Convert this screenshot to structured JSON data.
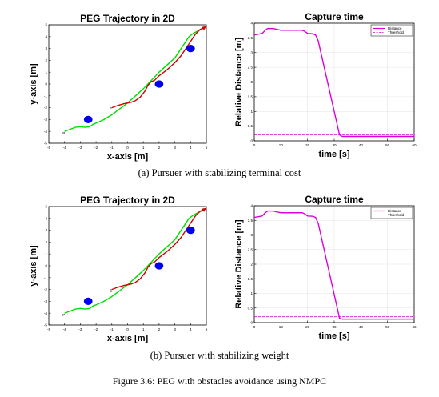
{
  "chart_data": [
    {
      "type": "line",
      "title": "PEG Trajectory in 2D",
      "xlabel": "x-axis [m]",
      "ylabel": "y-axis [m]",
      "xlim": [
        -5,
        5
      ],
      "ylim": [
        -5,
        5
      ],
      "xticks": [
        -5,
        -4,
        -3,
        -2,
        -1,
        0,
        1,
        2,
        3,
        4,
        5
      ],
      "yticks": [
        -5,
        -4,
        -3,
        -2,
        -1,
        0,
        1,
        2,
        3,
        4,
        5
      ],
      "grid": false,
      "series": [
        {
          "color": "#00dd00",
          "x": [
            -4.0,
            -3.6,
            -3.3,
            -3.0,
            -2.7,
            -2.4,
            -2.2,
            -2.0,
            -1.5,
            -1.0,
            -0.5,
            0.0,
            0.5,
            1.0,
            1.5,
            2.0,
            2.5,
            3.0,
            3.3,
            3.6,
            3.9,
            4.2,
            4.5,
            4.8
          ],
          "y": [
            -4.0,
            -3.8,
            -3.65,
            -3.6,
            -3.65,
            -3.6,
            -3.4,
            -3.3,
            -3.0,
            -2.6,
            -2.1,
            -1.6,
            -1.0,
            -0.4,
            0.3,
            1.0,
            1.6,
            2.2,
            2.8,
            3.4,
            4.0,
            4.3,
            4.5,
            4.7
          ]
        },
        {
          "color": "#cc0000",
          "x": [
            -1.0,
            -0.6,
            -0.2,
            0.2,
            0.5,
            0.8,
            1.1,
            1.3,
            1.5,
            1.7,
            2.0,
            2.5,
            3.0,
            3.4,
            3.7,
            4.0,
            4.3,
            4.6,
            4.85
          ],
          "y": [
            -2.0,
            -1.8,
            -1.65,
            -1.55,
            -1.4,
            -1.1,
            -0.6,
            -0.1,
            0.2,
            0.3,
            0.7,
            1.2,
            1.8,
            2.4,
            3.0,
            3.6,
            4.2,
            4.6,
            4.75
          ]
        }
      ],
      "obstacles": [
        {
          "x": -2.5,
          "y": -3.0,
          "color": "#0000ee"
        },
        {
          "x": 2.0,
          "y": 0.0,
          "color": "#0000ee"
        },
        {
          "x": 4.0,
          "y": 3.0,
          "color": "#0000ee"
        }
      ],
      "annotations": [
        {
          "text": "P",
          "x": -4.05,
          "y": -4.25
        },
        {
          "text": "E",
          "x": -1.05,
          "y": -2.2
        }
      ]
    },
    {
      "type": "line",
      "title": "Capture time",
      "xlabel": "time [s]",
      "ylabel": "Relative Distance [m]",
      "xlim": [
        0,
        60
      ],
      "ylim": [
        0,
        4
      ],
      "xticks": [
        0,
        10,
        20,
        30,
        40,
        50,
        60
      ],
      "yticks": [
        0,
        0.5,
        1,
        1.5,
        2,
        2.5,
        3,
        3.5,
        4
      ],
      "grid": true,
      "legend_position": "top-right",
      "series": [
        {
          "name": "Distance",
          "color": "#dd00dd",
          "dash": "solid",
          "x": [
            0,
            3,
            4,
            5,
            7,
            9,
            10,
            18,
            19,
            20,
            22,
            23,
            24,
            32,
            33,
            40,
            50,
            60
          ],
          "y": [
            3.6,
            3.65,
            3.75,
            3.82,
            3.82,
            3.78,
            3.76,
            3.76,
            3.72,
            3.65,
            3.64,
            3.6,
            3.4,
            0.2,
            0.15,
            0.15,
            0.15,
            0.15
          ]
        },
        {
          "name": "Threshold",
          "color": "#dd00dd",
          "dash": "dashed",
          "x": [
            0,
            60
          ],
          "y": [
            0.2,
            0.2
          ]
        }
      ]
    },
    {
      "type": "line",
      "title": "PEG Trajectory in 2D",
      "xlabel": "x-axis [m]",
      "ylabel": "y-axis [m]",
      "xlim": [
        -5,
        5
      ],
      "ylim": [
        -5,
        5
      ],
      "xticks": [
        -5,
        -4,
        -3,
        -2,
        -1,
        0,
        1,
        2,
        3,
        4,
        5
      ],
      "yticks": [
        -5,
        -4,
        -3,
        -2,
        -1,
        0,
        1,
        2,
        3,
        4,
        5
      ],
      "grid": false,
      "series": [
        {
          "color": "#00dd00",
          "x": [
            -4.0,
            -3.6,
            -3.3,
            -3.0,
            -2.7,
            -2.4,
            -2.2,
            -2.0,
            -1.5,
            -1.0,
            -0.5,
            0.0,
            0.5,
            1.0,
            1.5,
            2.0,
            2.5,
            3.0,
            3.3,
            3.6,
            3.9,
            4.2,
            4.5,
            4.8
          ],
          "y": [
            -4.0,
            -3.8,
            -3.65,
            -3.6,
            -3.65,
            -3.6,
            -3.4,
            -3.3,
            -3.0,
            -2.6,
            -2.1,
            -1.6,
            -1.0,
            -0.4,
            0.3,
            1.0,
            1.6,
            2.2,
            2.8,
            3.4,
            4.0,
            4.3,
            4.5,
            4.7
          ]
        },
        {
          "color": "#cc0000",
          "x": [
            -1.0,
            -0.6,
            -0.2,
            0.2,
            0.5,
            0.8,
            1.1,
            1.3,
            1.5,
            1.7,
            2.0,
            2.5,
            3.0,
            3.4,
            3.7,
            4.0,
            4.3,
            4.6,
            4.85
          ],
          "y": [
            -2.0,
            -1.8,
            -1.65,
            -1.55,
            -1.4,
            -1.1,
            -0.6,
            -0.1,
            0.2,
            0.3,
            0.7,
            1.2,
            1.8,
            2.4,
            3.0,
            3.6,
            4.2,
            4.6,
            4.75
          ]
        }
      ],
      "obstacles": [
        {
          "x": -2.5,
          "y": -3.0,
          "color": "#0000ee"
        },
        {
          "x": 2.0,
          "y": 0.0,
          "color": "#0000ee"
        },
        {
          "x": 4.0,
          "y": 3.0,
          "color": "#0000ee"
        }
      ],
      "annotations": [
        {
          "text": "P",
          "x": -4.05,
          "y": -4.25
        },
        {
          "text": "E",
          "x": -1.05,
          "y": -2.2
        }
      ]
    },
    {
      "type": "line",
      "title": "Capture time",
      "xlabel": "time [s]",
      "ylabel": "Relative Distance [m]",
      "xlim": [
        0,
        60
      ],
      "ylim": [
        0,
        4
      ],
      "xticks": [
        0,
        10,
        20,
        30,
        40,
        50,
        60
      ],
      "yticks": [
        0,
        0.5,
        1,
        1.5,
        2,
        2.5,
        3,
        3.5,
        4
      ],
      "grid": true,
      "legend_position": "top-right",
      "series": [
        {
          "name": "Distance",
          "color": "#dd00dd",
          "dash": "solid",
          "x": [
            0,
            3,
            4,
            5,
            7,
            9,
            10,
            18,
            19,
            20,
            22,
            23,
            24,
            32,
            33,
            40,
            50,
            60
          ],
          "y": [
            3.6,
            3.65,
            3.75,
            3.82,
            3.82,
            3.78,
            3.76,
            3.76,
            3.72,
            3.65,
            3.64,
            3.6,
            3.4,
            0.15,
            0.12,
            0.12,
            0.12,
            0.12
          ]
        },
        {
          "name": "Threshold",
          "color": "#dd00dd",
          "dash": "dashed",
          "x": [
            0,
            60
          ],
          "y": [
            0.2,
            0.2
          ]
        }
      ]
    }
  ],
  "captions": {
    "a": "(a) Pursuer with stabilizing terminal cost",
    "b": "(b) Pursuer with stabilizing weight",
    "figure": "Figure 3.6: PEG with obstacles avoidance using NMPC"
  }
}
